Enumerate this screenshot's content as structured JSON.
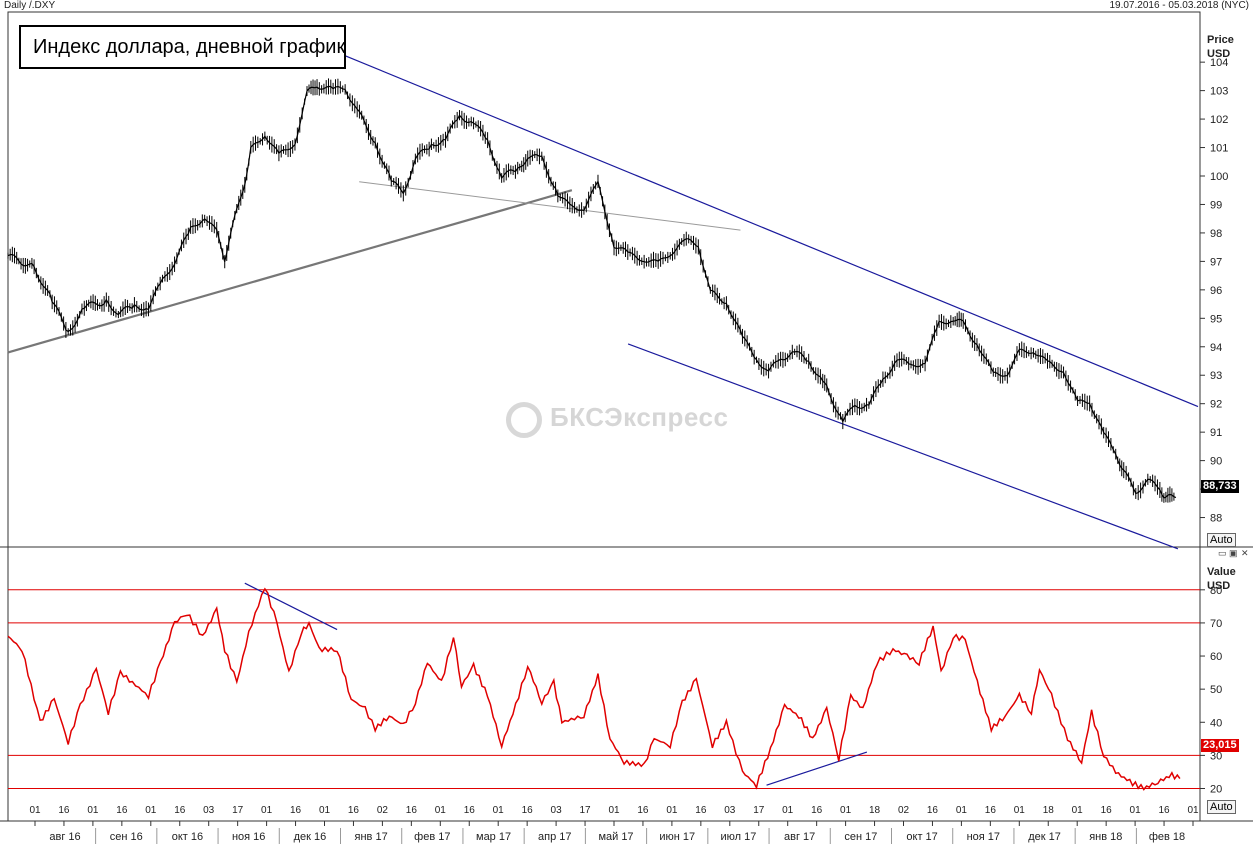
{
  "header": {
    "left": "Daily /.DXY",
    "right": "19.07.2016 - 05.03.2018 (NYC)"
  },
  "title_box": "Индекс доллара, дневной график",
  "watermark": "БКСЭкспресс",
  "price_panel": {
    "unit_line1": "Price",
    "unit_line2": "USD",
    "auto": "Auto",
    "last_value_label": "88,733"
  },
  "rsi_panel": {
    "unit_line1": "Value",
    "unit_line2": "USD",
    "auto": "Auto",
    "last_value_label": "23,015"
  },
  "colors": {
    "price": "#000000",
    "rsi": "#e00000",
    "channel": "#1a1a9c",
    "support": "#777777",
    "level": "#e00000"
  },
  "chart_data": [
    {
      "type": "line",
      "panel": "price",
      "ylim": [
        87.0,
        105.2
      ],
      "y_ticks": [
        "88",
        "89",
        "90",
        "91",
        "92",
        "93",
        "94",
        "95",
        "96",
        "97",
        "98",
        "99",
        "100",
        "101",
        "102",
        "103",
        "104"
      ],
      "last_value": 88.733,
      "series": [
        {
          "x": [
            "2016-07-19",
            "2016-08-01",
            "2016-08-10",
            "2016-08-18",
            "2016-08-26",
            "2016-09-06",
            "2016-09-12",
            "2016-09-20",
            "2016-09-27",
            "2016-10-04",
            "2016-10-10",
            "2016-10-18",
            "2016-10-25",
            "2016-10-31",
            "2016-11-04",
            "2016-11-09",
            "2016-11-14",
            "2016-11-17",
            "2016-11-24",
            "2016-12-01",
            "2016-12-09",
            "2016-12-15",
            "2016-12-20",
            "2016-12-28",
            "2017-01-03",
            "2017-01-09",
            "2017-01-18",
            "2017-01-26",
            "2017-02-01",
            "2017-02-07",
            "2017-02-15",
            "2017-02-22",
            "2017-03-01",
            "2017-03-08",
            "2017-03-15",
            "2017-03-22",
            "2017-03-30",
            "2017-04-04",
            "2017-04-11",
            "2017-04-19",
            "2017-04-25",
            "2017-05-02",
            "2017-05-09",
            "2017-05-17",
            "2017-05-25",
            "2017-06-01",
            "2017-06-08",
            "2017-06-14",
            "2017-06-22",
            "2017-06-28",
            "2017-07-04",
            "2017-07-12",
            "2017-07-20",
            "2017-07-27",
            "2017-08-02",
            "2017-08-08",
            "2017-08-15",
            "2017-08-22",
            "2017-08-29",
            "2017-09-01",
            "2017-09-08",
            "2017-09-14",
            "2017-09-21",
            "2017-09-28",
            "2017-10-05",
            "2017-10-12",
            "2017-10-19",
            "2017-10-26",
            "2017-11-02",
            "2017-11-07",
            "2017-11-15",
            "2017-11-22",
            "2017-11-29",
            "2017-12-05",
            "2017-12-12",
            "2017-12-19",
            "2017-12-27",
            "2018-01-03",
            "2018-01-09",
            "2018-01-16",
            "2018-01-22",
            "2018-01-26",
            "2018-02-01",
            "2018-02-07",
            "2018-02-13",
            "2018-02-16",
            "2018-02-21"
          ],
          "y": [
            97.2,
            96.8,
            95.6,
            94.5,
            95.4,
            95.6,
            95.2,
            95.4,
            95.4,
            96.3,
            97.0,
            98.1,
            98.6,
            98.0,
            97.1,
            98.5,
            99.8,
            100.9,
            101.5,
            100.7,
            101.2,
            102.9,
            103.2,
            103.0,
            103.1,
            102.3,
            101.2,
            99.8,
            99.4,
            100.6,
            101.1,
            101.3,
            102.1,
            101.9,
            101.2,
            100.0,
            100.2,
            100.7,
            100.6,
            99.4,
            98.9,
            98.9,
            99.7,
            97.6,
            97.2,
            97.1,
            96.9,
            97.3,
            97.7,
            97.6,
            95.9,
            95.6,
            94.3,
            93.6,
            93.1,
            93.6,
            93.8,
            93.5,
            92.8,
            92.4,
            91.4,
            91.9,
            92.0,
            92.8,
            93.6,
            93.3,
            93.5,
            94.8,
            95.0,
            94.8,
            94.0,
            93.0,
            93.1,
            93.8,
            93.9,
            93.4,
            93.2,
            92.0,
            92.1,
            90.9,
            90.3,
            89.6,
            88.9,
            89.3,
            89.0,
            88.7,
            88.7
          ]
        }
      ]
    },
    {
      "type": "line",
      "panel": "oscillator",
      "ylim": [
        12,
        89
      ],
      "y_ticks": [
        "20",
        "30",
        "40",
        "50",
        "60",
        "70",
        "80"
      ],
      "levels": [
        20,
        30,
        70,
        80
      ],
      "last_value": 23.015,
      "series": [
        {
          "x": [
            "2016-07-19",
            "2016-07-26",
            "2016-08-04",
            "2016-08-11",
            "2016-08-18",
            "2016-08-24",
            "2016-09-01",
            "2016-09-07",
            "2016-09-13",
            "2016-09-19",
            "2016-09-27",
            "2016-10-03",
            "2016-10-10",
            "2016-10-16",
            "2016-10-24",
            "2016-10-31",
            "2016-11-04",
            "2016-11-10",
            "2016-11-16",
            "2016-11-24",
            "2016-11-30",
            "2016-12-06",
            "2016-12-12",
            "2016-12-16",
            "2016-12-21",
            "2016-12-30",
            "2017-01-06",
            "2017-01-13",
            "2017-01-18",
            "2017-01-25",
            "2017-02-01",
            "2017-02-07",
            "2017-02-13",
            "2017-02-20",
            "2017-02-26",
            "2017-03-02",
            "2017-03-08",
            "2017-03-15",
            "2017-03-22",
            "2017-03-29",
            "2017-04-04",
            "2017-04-11",
            "2017-04-17",
            "2017-04-21",
            "2017-05-02",
            "2017-05-09",
            "2017-05-15",
            "2017-05-22",
            "2017-06-01",
            "2017-06-06",
            "2017-06-14",
            "2017-06-20",
            "2017-06-27",
            "2017-07-05",
            "2017-07-12",
            "2017-07-20",
            "2017-07-27",
            "2017-08-03",
            "2017-08-10",
            "2017-08-17",
            "2017-08-24",
            "2017-08-31",
            "2017-09-06",
            "2017-09-12",
            "2017-09-18",
            "2017-09-25",
            "2017-10-03",
            "2017-10-10",
            "2017-10-16",
            "2017-10-23",
            "2017-10-27",
            "2017-11-02",
            "2017-11-08",
            "2017-11-14",
            "2017-11-21",
            "2017-11-28",
            "2017-12-05",
            "2017-12-11",
            "2017-12-15",
            "2017-12-21",
            "2017-12-29",
            "2018-01-05",
            "2018-01-10",
            "2018-01-16",
            "2018-01-22",
            "2018-01-29",
            "2018-02-05",
            "2018-02-12",
            "2018-02-19",
            "2018-02-23"
          ],
          "y": [
            66,
            62,
            40,
            47,
            34,
            45,
            56,
            43,
            55,
            52,
            48,
            58,
            70,
            73,
            66,
            74,
            62,
            52,
            67,
            81,
            70,
            55,
            67,
            70,
            62,
            62,
            47,
            44,
            38,
            42,
            39,
            46,
            58,
            52,
            66,
            51,
            57,
            48,
            33,
            45,
            57,
            46,
            52,
            40,
            42,
            54,
            35,
            28,
            27,
            35,
            33,
            46,
            53,
            33,
            40,
            25,
            21,
            32,
            45,
            42,
            35,
            44,
            29,
            48,
            44,
            58,
            62,
            60,
            58,
            69,
            55,
            66,
            65,
            52,
            38,
            42,
            48,
            43,
            56,
            48,
            35,
            28,
            43,
            30,
            25,
            22,
            20,
            22,
            24,
            23
          ]
        }
      ]
    }
  ],
  "x_axis": {
    "day_ticks": [
      "01",
      "16",
      "01",
      "16",
      "01",
      "16",
      "03",
      "17",
      "01",
      "16",
      "01",
      "16",
      "02",
      "16",
      "01",
      "16",
      "01",
      "16",
      "03",
      "17",
      "01",
      "16",
      "01",
      "16",
      "03",
      "17",
      "01",
      "16",
      "01",
      "18",
      "02",
      "16",
      "01",
      "16",
      "01",
      "18",
      "01",
      "16",
      "01",
      "16",
      "01"
    ],
    "month_labels": [
      "авг 16",
      "сен 16",
      "окт 16",
      "ноя 16",
      "дек 16",
      "янв 17",
      "фев 17",
      "мар 17",
      "апр 17",
      "май 17",
      "июн 17",
      "июл 17",
      "авг 17",
      "сен 17",
      "окт 17",
      "ноя 17",
      "дек 17",
      "янв 18",
      "фев 18"
    ]
  }
}
